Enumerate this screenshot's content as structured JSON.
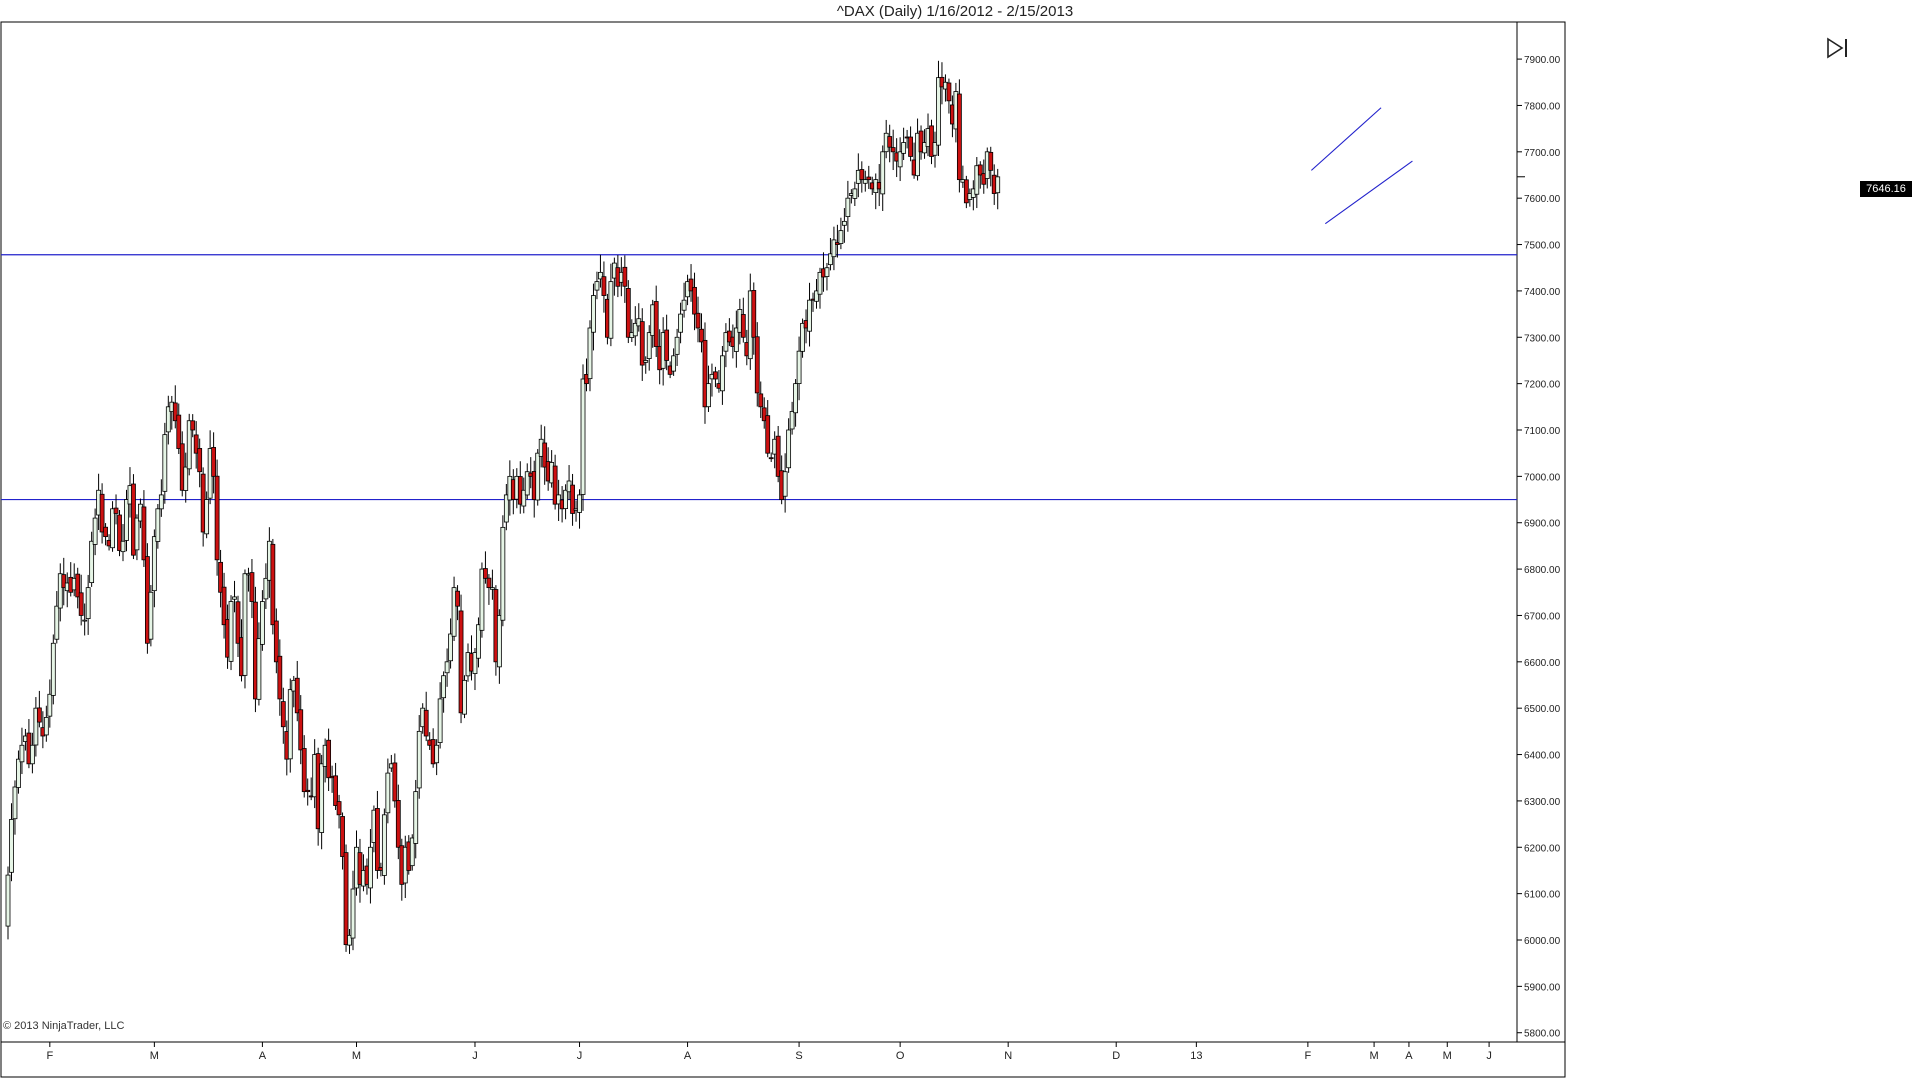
{
  "window": {
    "title": "^DAX (Daily)  1/16/2012 - 2/15/2013",
    "copyright": "© 2013 NinjaTrader, LLC",
    "last_price_label": "7646.16",
    "skip_button_icon": "skip-to-end-icon"
  },
  "colors": {
    "up_candle": "#e6f5e6",
    "down_candle": "#cc1111",
    "line_color": "#2222cc",
    "axis": "#000000"
  },
  "chart_data": {
    "type": "candlestick",
    "title": "^DAX (Daily)  1/16/2012 - 2/15/2013",
    "ylim": [
      5780,
      7980
    ],
    "y_ticks": [
      "7900.00",
      "7800.00",
      "7700.00",
      "7600.00",
      "7500.00",
      "7400.00",
      "7300.00",
      "7200.00",
      "7100.00",
      "7000.00",
      "6900.00",
      "6800.00",
      "6700.00",
      "6600.00",
      "6500.00",
      "6400.00",
      "6300.00",
      "6200.00",
      "6100.00",
      "6000.00",
      "5900.00",
      "5800.00"
    ],
    "x_ticks": [
      "F",
      "M",
      "A",
      "M",
      "J",
      "J",
      "A",
      "S",
      "O",
      "N",
      "D",
      "13",
      "F",
      "M",
      "A",
      "M",
      "J"
    ],
    "x_tick_index": [
      12,
      42,
      73,
      100,
      134,
      164,
      195,
      227,
      256,
      287,
      318,
      341,
      373,
      392,
      402,
      413,
      425
    ],
    "horizontal_lines": [
      7478,
      6950
    ],
    "channel_lines": [
      {
        "from": [
          374,
          7660
        ],
        "to": [
          394,
          7795
        ]
      },
      {
        "from": [
          378,
          7545
        ],
        "to": [
          403,
          7680
        ]
      }
    ],
    "last_price": 7646.16,
    "closes": [
      6140,
      6260,
      6330,
      6390,
      6420,
      6440,
      6380,
      6420,
      6500,
      6470,
      6440,
      6480,
      6530,
      6640,
      6720,
      6790,
      6760,
      6770,
      6750,
      6780,
      6740,
      6700,
      6690,
      6760,
      6860,
      6910,
      6970,
      6880,
      6870,
      6850,
      6930,
      6920,
      6840,
      6860,
      6950,
      6980,
      6830,
      6910,
      6940,
      6820,
      6640,
      6750,
      6870,
      6930,
      6960,
      7090,
      7150,
      7160,
      7120,
      7060,
      6970,
      7020,
      7120,
      7100,
      7050,
      7010,
      6880,
      6950,
      7060,
      7000,
      6820,
      6750,
      6680,
      6610,
      6730,
      6740,
      6640,
      6570,
      6790,
      6790,
      6730,
      6520,
      6650,
      6730,
      6780,
      6860,
      6680,
      6600,
      6520,
      6460,
      6390,
      6540,
      6560,
      6490,
      6410,
      6320,
      6320,
      6310,
      6400,
      6240,
      6380,
      6420,
      6350,
      6350,
      6290,
      6270,
      6180,
      5990,
      6010,
      6110,
      6200,
      6120,
      6150,
      6120,
      6200,
      6280,
      6150,
      6150,
      6270,
      6360,
      6380,
      6300,
      6200,
      6120,
      6200,
      6150,
      6220,
      6320,
      6450,
      6500,
      6440,
      6420,
      6380,
      6420,
      6520,
      6570,
      6600,
      6660,
      6760,
      6720,
      6490,
      6560,
      6620,
      6580,
      6620,
      6680,
      6800,
      6780,
      6760,
      6760,
      6600,
      6700,
      6890,
      6960,
      7000,
      6950,
      7000,
      6940,
      6970,
      7010,
      7000,
      6950,
      7050,
      7080,
      7020,
      6990,
      7030,
      6940,
      6960,
      6930,
      6970,
      6990,
      6920,
      6930,
      6960,
      7210,
      7200,
      7320,
      7390,
      7420,
      7440,
      7390,
      7300,
      7420,
      7460,
      7410,
      7440,
      7410,
      7300,
      7310,
      7330,
      7340,
      7240,
      7250,
      7310,
      7370,
      7280,
      7230,
      7310,
      7250,
      7220,
      7260,
      7300,
      7350,
      7380,
      7420,
      7400,
      7350,
      7320,
      7290,
      7150,
      7200,
      7220,
      7210,
      7190,
      7260,
      7310,
      7290,
      7280,
      7320,
      7360,
      7300,
      7260,
      7400,
      7300,
      7180,
      7150,
      7120,
      7050,
      7040,
      7080,
      7000,
      6950,
      7010,
      7100,
      7140,
      7200,
      7270,
      7330,
      7320,
      7380,
      7380,
      7400,
      7440,
      7430,
      7450,
      7480,
      7510,
      7500,
      7530,
      7550,
      7600,
      7610,
      7620,
      7660,
      7640,
      7640,
      7640,
      7620,
      7640,
      7620,
      7700,
      7740,
      7710,
      7700,
      7680,
      7700,
      7720,
      7730,
      7690,
      7650,
      7740,
      7700,
      7720,
      7750,
      7690,
      7720,
      7860,
      7840,
      7850,
      7810,
      7760,
      7830,
      7640,
      7640,
      7590,
      7610,
      7620,
      7670,
      7650,
      7630,
      7700,
      7660,
      7610,
      7646
    ]
  }
}
